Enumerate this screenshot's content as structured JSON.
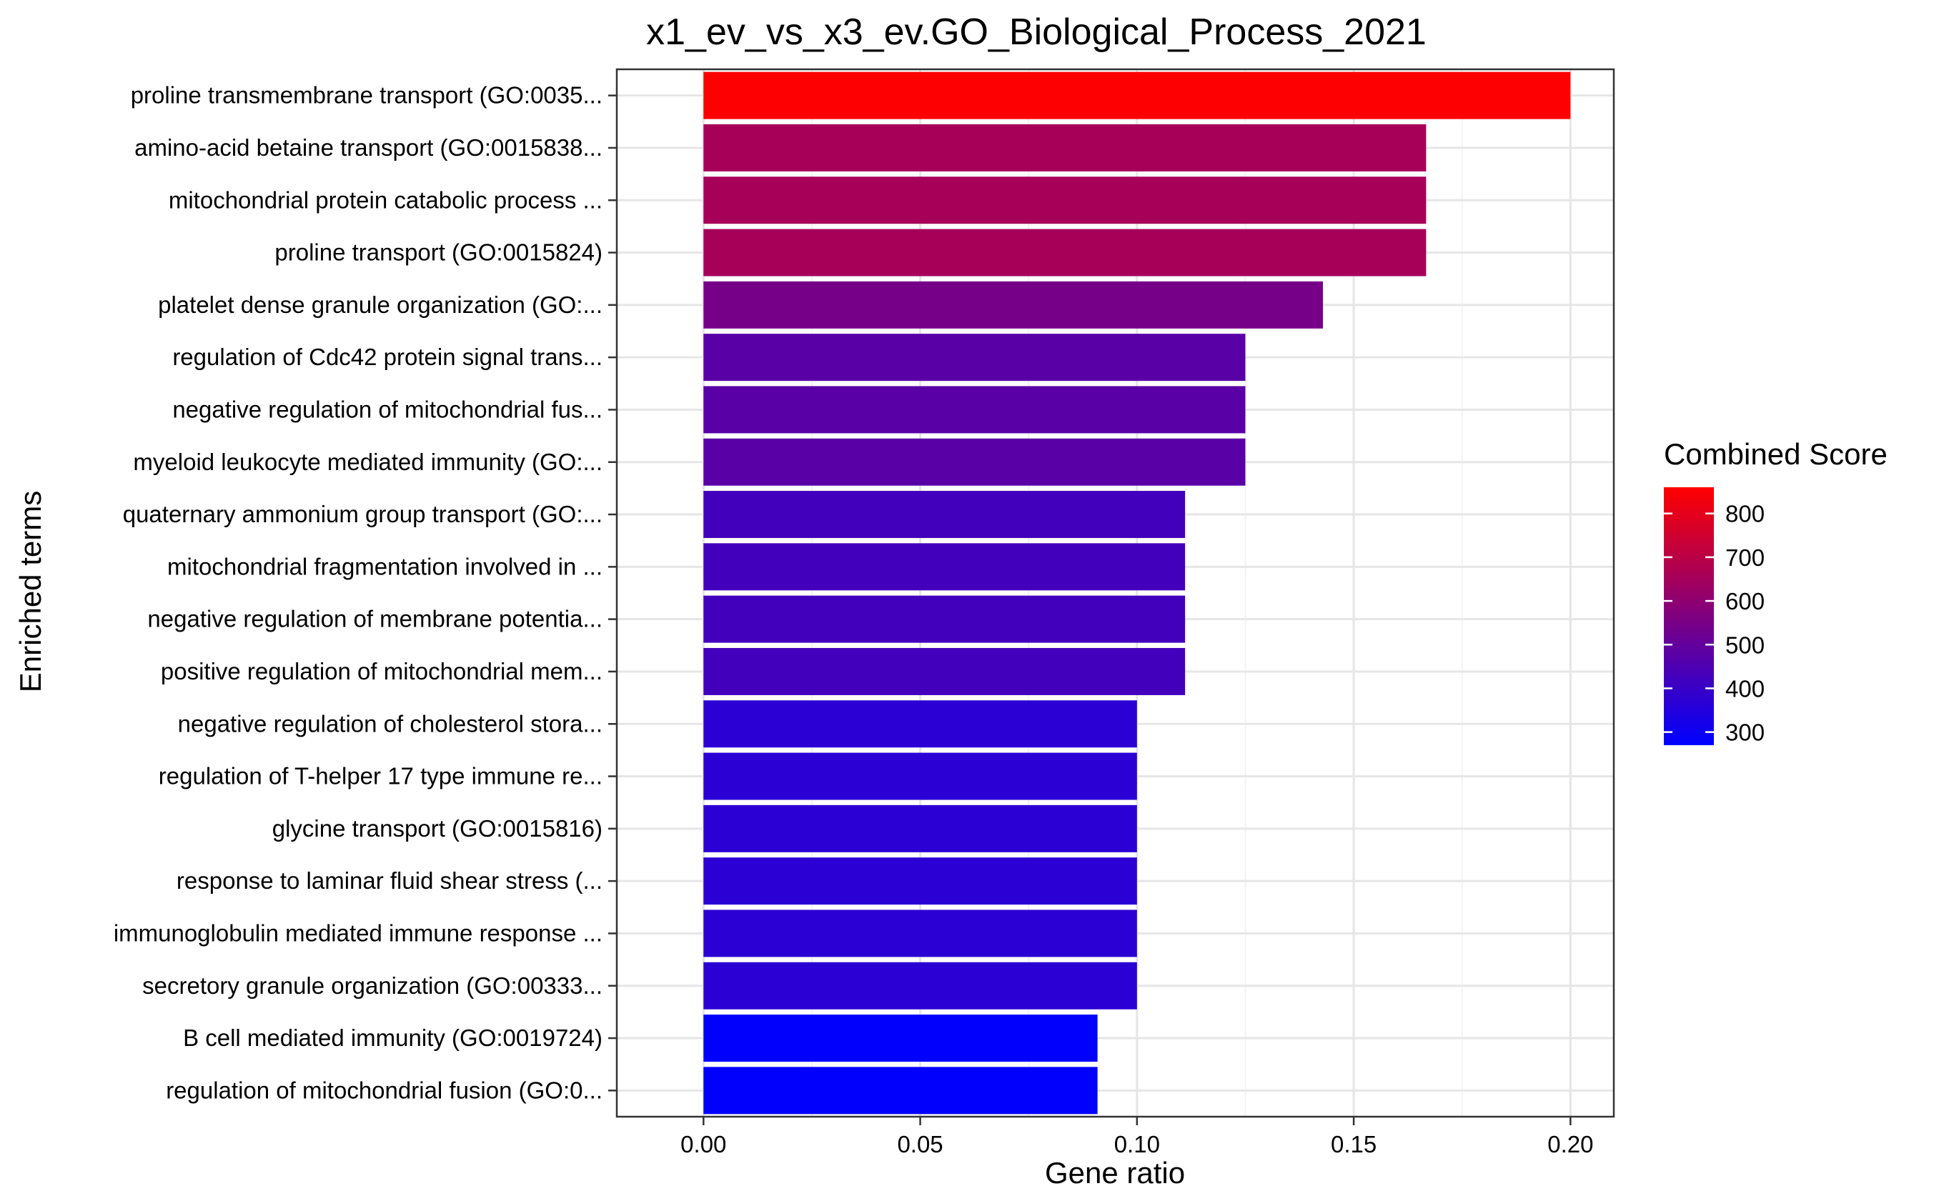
{
  "chart_data": {
    "type": "bar",
    "orientation": "horizontal",
    "title": "x1_ev_vs_x3_ev.GO_Biological_Process_2021",
    "xlabel": "Gene ratio",
    "ylabel": "Enriched terms",
    "xlim": [
      -0.02,
      0.21
    ],
    "xticks": [
      0.0,
      0.05,
      0.1,
      0.15,
      0.2
    ],
    "xtick_labels": [
      "0.00",
      "0.05",
      "0.10",
      "0.15",
      "0.20"
    ],
    "grid": true,
    "categories": [
      "proline transmembrane transport (GO:0035...",
      "amino-acid betaine transport (GO:0015838...",
      "mitochondrial protein catabolic process ...",
      "proline transport (GO:0015824)",
      "platelet dense granule organization (GO:...",
      "regulation of Cdc42 protein signal trans...",
      "negative regulation of mitochondrial fus...",
      "myeloid leukocyte mediated immunity (GO:...",
      "quaternary ammonium group transport (GO:...",
      "mitochondrial fragmentation involved in ...",
      "negative regulation of membrane potentia...",
      "positive regulation of mitochondrial mem...",
      "negative regulation of cholesterol stora...",
      "regulation of T-helper 17 type immune re...",
      "glycine transport (GO:0015816)",
      "response to laminar fluid shear stress (...",
      "immunoglobulin mediated immune response ...",
      "secretory granule organization (GO:00333...",
      "B cell mediated immunity (GO:0019724)",
      "regulation of mitochondrial fusion (GO:0..."
    ],
    "values": [
      0.2,
      0.1667,
      0.1667,
      0.1667,
      0.1429,
      0.125,
      0.125,
      0.125,
      0.1111,
      0.1111,
      0.1111,
      0.1111,
      0.1,
      0.1,
      0.1,
      0.1,
      0.1,
      0.1,
      0.0909,
      0.0909
    ],
    "combined_score": [
      855,
      655,
      655,
      655,
      545,
      475,
      475,
      475,
      425,
      425,
      425,
      425,
      370,
      370,
      370,
      370,
      370,
      370,
      275,
      275
    ],
    "legend": {
      "title": "Combined Score",
      "placement": "right",
      "ticks": [
        300,
        400,
        500,
        600,
        700,
        800
      ],
      "range": [
        270,
        860
      ],
      "low_color": "#0000FF",
      "high_color": "#FF0000"
    }
  }
}
